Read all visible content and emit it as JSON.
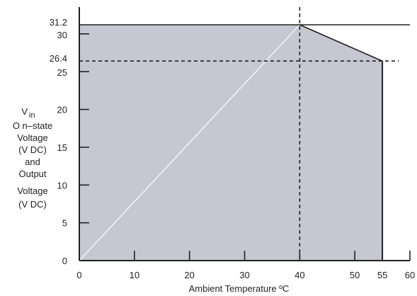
{
  "chart_data": {
    "type": "area",
    "xlabel": "Ambient   Temperature  ºC",
    "ylabel_lines": [
      "V",
      "O n–state",
      "Voltage",
      "(V DC)",
      "and",
      "Output",
      "Voltage",
      "(V DC)"
    ],
    "ylabel_sub": "in",
    "xlim": [
      0,
      60
    ],
    "ylim": [
      0,
      32.5
    ],
    "x_ticks": [
      0,
      10,
      20,
      30,
      40,
      50,
      55,
      60
    ],
    "y_ticks": [
      0,
      5,
      10,
      15,
      20,
      25,
      30
    ],
    "y_special_ticks": [
      26.4,
      31.2
    ],
    "region": {
      "x": [
        0,
        40,
        55,
        55,
        0
      ],
      "y": [
        31.2,
        31.2,
        26.4,
        0,
        0
      ],
      "fill": "#c5c8d1",
      "edge": "#231f20"
    },
    "max_line": {
      "y": 31.2,
      "x_end": 60
    },
    "diagonal": {
      "x": [
        0,
        40
      ],
      "y": [
        0,
        31.2
      ],
      "color": "#ffffff"
    },
    "dashed_lines": [
      {
        "orientation": "vertical",
        "x": 40
      },
      {
        "orientation": "horizontal",
        "y": 26.4,
        "x_end": 58
      }
    ],
    "grid": false
  }
}
